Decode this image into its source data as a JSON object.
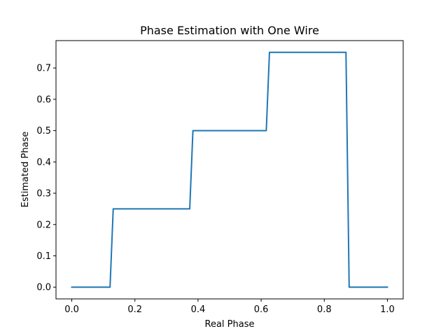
{
  "chart_data": {
    "type": "line",
    "title": "Phase Estimation with One Wire",
    "xlabel": "Real Phase",
    "ylabel": "Estimated Phase",
    "xlim": [
      -0.05,
      1.05
    ],
    "ylim": [
      -0.0375,
      0.7875
    ],
    "xticks": [
      0.0,
      0.2,
      0.4,
      0.6,
      0.8,
      1.0
    ],
    "xtick_labels": [
      "0.0",
      "0.2",
      "0.4",
      "0.6",
      "0.8",
      "1.0"
    ],
    "yticks": [
      0.0,
      0.1,
      0.2,
      0.3,
      0.4,
      0.5,
      0.6,
      0.7
    ],
    "ytick_labels": [
      "0.0",
      "0.1",
      "0.2",
      "0.3",
      "0.4",
      "0.5",
      "0.6",
      "0.7"
    ],
    "grid": false,
    "series": [
      {
        "color": "#1f77b4",
        "x": [
          0.0,
          0.1212,
          0.1313,
          0.3737,
          0.3838,
          0.6162,
          0.6263,
          0.8687,
          0.8788,
          1.0
        ],
        "y": [
          0.0,
          0.0,
          0.25,
          0.25,
          0.5,
          0.5,
          0.75,
          0.75,
          0.0,
          0.0
        ]
      }
    ]
  }
}
